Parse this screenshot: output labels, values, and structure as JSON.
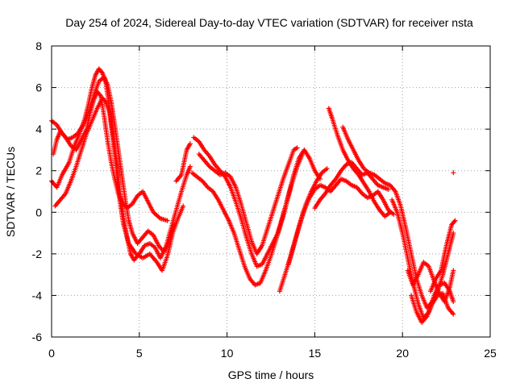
{
  "chart_data": {
    "type": "scatter",
    "title": "Day 254 of 2024, Sidereal Day-to-day VTEC variation (SDTVAR) for receiver nsta",
    "xlabel": "GPS time / hours",
    "ylabel": "SDTVAR / TECUs",
    "xlim": [
      0,
      25
    ],
    "ylim": [
      -6,
      8
    ],
    "xticks": [
      0,
      5,
      10,
      15,
      20,
      25
    ],
    "yticks": [
      -6,
      -4,
      -2,
      0,
      2,
      4,
      6,
      8
    ],
    "grid": true,
    "marker": "+",
    "color": "#ff0000",
    "series": [
      {
        "name": "trace-1",
        "points": [
          [
            0.0,
            1.5
          ],
          [
            0.3,
            1.2
          ],
          [
            0.6,
            1.8
          ],
          [
            1.0,
            2.4
          ],
          [
            1.3,
            3.2
          ],
          [
            1.6,
            3.8
          ],
          [
            1.9,
            4.5
          ],
          [
            2.1,
            5.2
          ],
          [
            2.3,
            6.0
          ],
          [
            2.5,
            6.6
          ],
          [
            2.7,
            6.9
          ],
          [
            2.9,
            6.7
          ],
          [
            3.1,
            6.2
          ],
          [
            3.3,
            5.0
          ],
          [
            3.5,
            3.8
          ],
          [
            3.7,
            2.5
          ],
          [
            3.9,
            1.0
          ],
          [
            4.1,
            -0.2
          ],
          [
            4.3,
            -1.2
          ],
          [
            4.5,
            -2.0
          ],
          [
            4.7,
            -2.3
          ],
          [
            5.0,
            -2.0
          ],
          [
            5.3,
            -1.6
          ],
          [
            5.6,
            -1.5
          ],
          [
            5.9,
            -1.7
          ],
          [
            6.2,
            -2.2
          ],
          [
            6.5,
            -1.7
          ],
          [
            6.8,
            -0.8
          ],
          [
            7.1,
            0.1
          ],
          [
            7.4,
            1.0
          ],
          [
            7.7,
            1.8
          ],
          [
            7.9,
            2.2
          ]
        ]
      },
      {
        "name": "trace-2",
        "points": [
          [
            0.1,
            2.8
          ],
          [
            0.3,
            3.5
          ],
          [
            0.5,
            3.9
          ],
          [
            0.8,
            3.6
          ],
          [
            1.1,
            3.2
          ],
          [
            1.4,
            3.0
          ],
          [
            1.7,
            3.5
          ],
          [
            2.0,
            4.0
          ],
          [
            2.2,
            4.8
          ],
          [
            2.4,
            5.4
          ],
          [
            2.6,
            5.8
          ],
          [
            2.8,
            5.6
          ],
          [
            3.0,
            4.6
          ],
          [
            3.2,
            3.4
          ],
          [
            3.4,
            2.4
          ],
          [
            3.6,
            1.6
          ],
          [
            3.8,
            0.9
          ],
          [
            4.0,
            0.5
          ],
          [
            4.3,
            0.2
          ],
          [
            4.6,
            0.4
          ],
          [
            4.9,
            0.8
          ],
          [
            5.2,
            1.0
          ],
          [
            5.5,
            0.5
          ],
          [
            5.8,
            0.0
          ],
          [
            6.2,
            -0.3
          ],
          [
            6.6,
            -0.4
          ]
        ]
      },
      {
        "name": "trace-3",
        "points": [
          [
            0.2,
            0.3
          ],
          [
            0.5,
            0.6
          ],
          [
            0.8,
            0.9
          ],
          [
            1.1,
            1.5
          ],
          [
            1.4,
            2.2
          ],
          [
            1.7,
            3.0
          ],
          [
            2.0,
            3.8
          ],
          [
            2.3,
            4.4
          ],
          [
            2.6,
            5.0
          ],
          [
            2.9,
            5.5
          ],
          [
            3.1,
            5.3
          ],
          [
            3.3,
            4.8
          ],
          [
            3.5,
            3.5
          ],
          [
            3.7,
            2.0
          ],
          [
            3.9,
            0.5
          ],
          [
            4.1,
            -0.6
          ],
          [
            4.4,
            -1.5
          ],
          [
            4.8,
            -2.0
          ],
          [
            5.2,
            -2.2
          ],
          [
            5.6,
            -2.0
          ],
          [
            6.0,
            -2.4
          ],
          [
            6.3,
            -2.8
          ],
          [
            6.6,
            -2.1
          ],
          [
            6.9,
            -1.0
          ],
          [
            7.2,
            -0.3
          ],
          [
            7.5,
            0.3
          ]
        ]
      },
      {
        "name": "trace-4",
        "points": [
          [
            0.0,
            4.4
          ],
          [
            0.3,
            4.2
          ],
          [
            0.6,
            3.8
          ],
          [
            0.9,
            3.5
          ],
          [
            1.2,
            3.6
          ],
          [
            1.5,
            3.8
          ],
          [
            1.8,
            4.2
          ],
          [
            2.1,
            4.8
          ],
          [
            2.4,
            5.6
          ],
          [
            2.7,
            6.3
          ],
          [
            3.0,
            6.5
          ],
          [
            3.2,
            6.1
          ],
          [
            3.4,
            5.3
          ],
          [
            3.6,
            4.2
          ],
          [
            3.8,
            3.0
          ],
          [
            4.0,
            1.8
          ],
          [
            4.2,
            0.6
          ],
          [
            4.4,
            -0.4
          ],
          [
            4.6,
            -1.0
          ],
          [
            4.9,
            -1.5
          ],
          [
            5.2,
            -1.2
          ],
          [
            5.5,
            -0.9
          ],
          [
            5.8,
            -1.1
          ],
          [
            6.1,
            -1.6
          ],
          [
            6.4,
            -1.9
          ],
          [
            6.7,
            -1.4
          ],
          [
            7.0,
            -0.6
          ]
        ]
      },
      {
        "name": "trace-5",
        "points": [
          [
            7.1,
            1.5
          ],
          [
            7.4,
            1.8
          ],
          [
            7.7,
            3.0
          ],
          [
            7.9,
            3.3
          ]
        ]
      },
      {
        "name": "trace-6",
        "points": [
          [
            8.1,
            3.6
          ],
          [
            8.4,
            3.4
          ],
          [
            8.7,
            3.0
          ],
          [
            9.0,
            2.7
          ],
          [
            9.3,
            2.3
          ],
          [
            9.6,
            2.0
          ],
          [
            9.9,
            1.7
          ],
          [
            10.2,
            1.2
          ],
          [
            10.5,
            0.5
          ],
          [
            10.8,
            -0.3
          ],
          [
            11.1,
            -1.2
          ],
          [
            11.4,
            -2.0
          ],
          [
            11.7,
            -2.6
          ],
          [
            12.0,
            -2.5
          ],
          [
            12.3,
            -2.0
          ],
          [
            12.6,
            -1.5
          ],
          [
            12.9,
            -1.0
          ],
          [
            13.2,
            -0.2
          ],
          [
            13.5,
            0.8
          ],
          [
            13.8,
            1.8
          ],
          [
            14.1,
            2.6
          ],
          [
            14.4,
            3.0
          ],
          [
            14.7,
            2.6
          ],
          [
            15.0,
            2.0
          ],
          [
            15.3,
            1.6
          ]
        ]
      },
      {
        "name": "trace-7",
        "points": [
          [
            8.0,
            1.9
          ],
          [
            8.3,
            1.7
          ],
          [
            8.6,
            1.5
          ],
          [
            8.9,
            1.2
          ],
          [
            9.2,
            1.0
          ],
          [
            9.5,
            0.6
          ],
          [
            9.8,
            0.1
          ],
          [
            10.1,
            -0.4
          ],
          [
            10.4,
            -1.0
          ],
          [
            10.7,
            -1.8
          ],
          [
            11.0,
            -2.6
          ],
          [
            11.3,
            -3.2
          ],
          [
            11.6,
            -3.5
          ],
          [
            11.9,
            -3.4
          ],
          [
            12.2,
            -2.8
          ],
          [
            12.5,
            -2.1
          ],
          [
            12.8,
            -1.3
          ],
          [
            13.1,
            -0.4
          ],
          [
            13.4,
            0.5
          ],
          [
            13.7,
            1.4
          ],
          [
            14.0,
            2.2
          ],
          [
            14.3,
            2.8
          ]
        ]
      },
      {
        "name": "trace-8",
        "points": [
          [
            8.4,
            2.8
          ],
          [
            8.7,
            2.5
          ],
          [
            9.0,
            2.2
          ],
          [
            9.3,
            2.0
          ],
          [
            9.6,
            1.8
          ],
          [
            9.9,
            1.9
          ],
          [
            10.2,
            1.7
          ],
          [
            10.5,
            1.2
          ],
          [
            10.8,
            0.4
          ],
          [
            11.1,
            -0.5
          ],
          [
            11.4,
            -1.4
          ],
          [
            11.7,
            -2.0
          ],
          [
            12.0,
            -1.6
          ],
          [
            12.3,
            -0.8
          ],
          [
            12.6,
            0.0
          ],
          [
            12.9,
            0.8
          ],
          [
            13.2,
            1.6
          ],
          [
            13.5,
            2.3
          ],
          [
            13.8,
            3.0
          ],
          [
            14.0,
            3.1
          ]
        ]
      },
      {
        "name": "trace-9",
        "points": [
          [
            13.0,
            -3.8
          ],
          [
            13.3,
            -3.0
          ],
          [
            13.6,
            -2.2
          ],
          [
            13.9,
            -1.3
          ],
          [
            14.2,
            -0.4
          ],
          [
            14.5,
            0.4
          ],
          [
            14.8,
            1.0
          ],
          [
            15.1,
            1.5
          ],
          [
            15.4,
            1.9
          ],
          [
            15.7,
            2.1
          ]
        ]
      },
      {
        "name": "trace-10",
        "points": [
          [
            13.5,
            -2.5
          ],
          [
            13.8,
            -1.6
          ],
          [
            14.1,
            -0.7
          ],
          [
            14.4,
            0.1
          ],
          [
            14.7,
            0.7
          ],
          [
            15.0,
            1.1
          ],
          [
            15.3,
            1.3
          ],
          [
            15.6,
            1.2
          ],
          [
            15.9,
            1.0
          ],
          [
            16.2,
            1.3
          ],
          [
            16.5,
            1.6
          ],
          [
            16.8,
            1.5
          ],
          [
            17.1,
            1.3
          ],
          [
            17.4,
            1.2
          ],
          [
            17.7,
            0.9
          ],
          [
            18.0,
            0.7
          ],
          [
            18.3,
            0.8
          ],
          [
            18.6,
            1.0
          ],
          [
            18.9,
            0.6
          ],
          [
            19.2,
            0.1
          ],
          [
            19.5,
            -0.1
          ]
        ]
      },
      {
        "name": "trace-11",
        "points": [
          [
            15.0,
            0.2
          ],
          [
            15.3,
            0.6
          ],
          [
            15.6,
            0.9
          ],
          [
            15.9,
            1.3
          ],
          [
            16.2,
            1.6
          ],
          [
            16.5,
            2.0
          ],
          [
            16.8,
            2.3
          ],
          [
            17.1,
            2.4
          ],
          [
            17.4,
            2.1
          ],
          [
            17.7,
            1.8
          ],
          [
            18.0,
            1.9
          ],
          [
            18.3,
            1.6
          ],
          [
            18.6,
            1.3
          ],
          [
            18.9,
            1.2
          ],
          [
            19.2,
            1.1
          ]
        ]
      },
      {
        "name": "trace-12",
        "points": [
          [
            15.8,
            5.0
          ],
          [
            16.0,
            4.5
          ],
          [
            16.3,
            3.7
          ],
          [
            16.6,
            3.0
          ],
          [
            16.9,
            2.5
          ],
          [
            17.2,
            2.1
          ],
          [
            17.5,
            1.8
          ],
          [
            17.8,
            1.4
          ],
          [
            18.1,
            1.0
          ],
          [
            18.4,
            0.5
          ],
          [
            18.7,
            0.1
          ],
          [
            19.0,
            -0.2
          ],
          [
            19.3,
            0.0
          ]
        ]
      },
      {
        "name": "trace-13",
        "points": [
          [
            16.6,
            4.1
          ],
          [
            16.9,
            3.5
          ],
          [
            17.2,
            3.0
          ],
          [
            17.5,
            2.5
          ],
          [
            17.8,
            2.1
          ],
          [
            18.1,
            1.9
          ],
          [
            18.4,
            1.8
          ],
          [
            18.7,
            1.6
          ],
          [
            19.0,
            1.4
          ],
          [
            19.3,
            1.3
          ],
          [
            19.6,
            1.0
          ],
          [
            19.9,
            0.3
          ],
          [
            20.2,
            -0.8
          ],
          [
            20.5,
            -2.0
          ],
          [
            20.8,
            -3.2
          ],
          [
            21.1,
            -4.0
          ],
          [
            21.4,
            -4.6
          ],
          [
            21.7,
            -4.3
          ],
          [
            22.0,
            -3.8
          ],
          [
            22.3,
            -3.0
          ],
          [
            22.6,
            -2.0
          ],
          [
            22.9,
            -1.0
          ]
        ]
      },
      {
        "name": "trace-14",
        "points": [
          [
            19.4,
            0.6
          ],
          [
            19.7,
            0.0
          ],
          [
            20.0,
            -1.0
          ],
          [
            20.3,
            -2.2
          ],
          [
            20.6,
            -3.4
          ],
          [
            20.9,
            -4.4
          ],
          [
            21.2,
            -5.1
          ],
          [
            21.5,
            -4.8
          ],
          [
            21.8,
            -4.0
          ],
          [
            22.1,
            -3.5
          ],
          [
            22.4,
            -3.4
          ],
          [
            22.7,
            -3.8
          ],
          [
            22.9,
            -4.3
          ]
        ]
      },
      {
        "name": "trace-15",
        "points": [
          [
            20.3,
            -2.8
          ],
          [
            20.6,
            -3.5
          ],
          [
            20.9,
            -3.0
          ],
          [
            21.2,
            -2.4
          ],
          [
            21.5,
            -2.6
          ],
          [
            21.8,
            -3.3
          ],
          [
            22.1,
            -3.9
          ],
          [
            22.4,
            -4.3
          ],
          [
            22.7,
            -3.6
          ],
          [
            22.9,
            -2.8
          ]
        ]
      },
      {
        "name": "trace-16",
        "points": [
          [
            20.5,
            -4.0
          ],
          [
            20.8,
            -4.8
          ],
          [
            21.1,
            -5.3
          ],
          [
            21.4,
            -5.0
          ],
          [
            21.7,
            -4.4
          ],
          [
            22.0,
            -4.0
          ],
          [
            22.3,
            -3.9
          ],
          [
            22.6,
            -4.6
          ],
          [
            22.9,
            -4.9
          ]
        ]
      },
      {
        "name": "trace-17",
        "points": [
          [
            21.6,
            -3.8
          ],
          [
            21.9,
            -3.2
          ],
          [
            22.2,
            -2.8
          ],
          [
            22.5,
            -1.6
          ],
          [
            22.8,
            -0.6
          ],
          [
            23.0,
            -0.4
          ]
        ]
      },
      {
        "name": "trace-18",
        "points": [
          [
            22.9,
            1.9
          ]
        ]
      }
    ]
  }
}
